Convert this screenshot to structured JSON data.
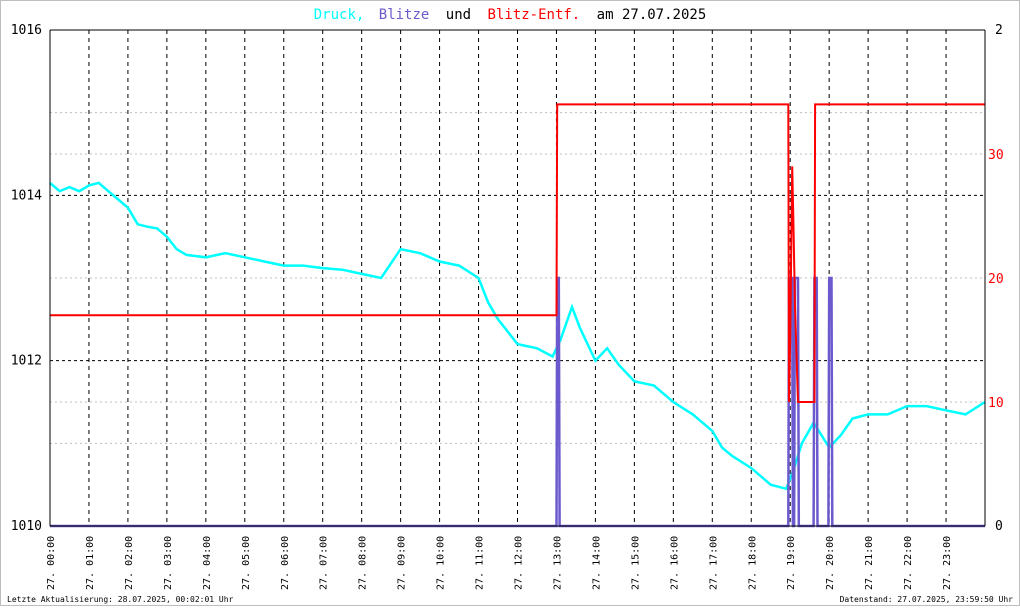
{
  "title": {
    "part1": "Druck,",
    "part2": "Blitze",
    "part3": "und",
    "part4": "Blitz-Entf.",
    "part5": "am 27.07.2025"
  },
  "colors": {
    "druck": "#00ffff",
    "blitze": "#6a5acd",
    "blitz_entf": "#ff0000",
    "text": "#000000",
    "left_axis": "#000000",
    "right_axis": "#ff0000",
    "grid": "#000000",
    "grid_light": "#bfbfbf"
  },
  "footer": {
    "left": "Letzte Aktualisierung: 28.07.2025, 00:02:01 Uhr",
    "right": "Datenstand: 27.07.2025, 23:59:50 Uhr"
  },
  "chart_data": {
    "type": "line",
    "x_unit": "hours",
    "xlim": [
      0,
      24
    ],
    "x_ticks": [
      {
        "x": 0,
        "label": "27. 00:00"
      },
      {
        "x": 1,
        "label": "27. 01:00"
      },
      {
        "x": 2,
        "label": "27. 02:00"
      },
      {
        "x": 3,
        "label": "27. 03:00"
      },
      {
        "x": 4,
        "label": "27. 04:00"
      },
      {
        "x": 5,
        "label": "27. 05:00"
      },
      {
        "x": 6,
        "label": "27. 06:00"
      },
      {
        "x": 7,
        "label": "27. 07:00"
      },
      {
        "x": 8,
        "label": "27. 08:00"
      },
      {
        "x": 9,
        "label": "27. 09:00"
      },
      {
        "x": 10,
        "label": "27. 10:00"
      },
      {
        "x": 11,
        "label": "27. 11:00"
      },
      {
        "x": 12,
        "label": "27. 12:00"
      },
      {
        "x": 13,
        "label": "27. 13:00"
      },
      {
        "x": 14,
        "label": "27. 14:00"
      },
      {
        "x": 15,
        "label": "27. 15:00"
      },
      {
        "x": 16,
        "label": "27. 16:00"
      },
      {
        "x": 17,
        "label": "27. 17:00"
      },
      {
        "x": 18,
        "label": "27. 18:00"
      },
      {
        "x": 19,
        "label": "27. 19:00"
      },
      {
        "x": 20,
        "label": "27. 20:00"
      },
      {
        "x": 21,
        "label": "27. 21:00"
      },
      {
        "x": 22,
        "label": "27. 22:00"
      },
      {
        "x": 23,
        "label": "27. 23:00"
      }
    ],
    "y_left": {
      "min": 1010,
      "max": 1016,
      "ticks": [
        1010,
        1012,
        1014,
        1016
      ],
      "gridlines": [
        1010,
        1011,
        1012,
        1013,
        1014,
        1015,
        1016
      ]
    },
    "y_right_count": {
      "min": 0,
      "max": 2,
      "ticks": [
        0,
        2
      ]
    },
    "y_right_distance": {
      "min": 0,
      "max": 40,
      "ticks": [
        0,
        10,
        20,
        30
      ]
    },
    "series": [
      {
        "name": "Druck",
        "axis": "left",
        "points": [
          [
            0.0,
            1014.15
          ],
          [
            0.25,
            1014.05
          ],
          [
            0.5,
            1014.1
          ],
          [
            0.75,
            1014.05
          ],
          [
            1.0,
            1014.12
          ],
          [
            1.25,
            1014.15
          ],
          [
            1.5,
            1014.05
          ],
          [
            1.75,
            1013.95
          ],
          [
            2.0,
            1013.85
          ],
          [
            2.25,
            1013.65
          ],
          [
            2.5,
            1013.62
          ],
          [
            2.75,
            1013.6
          ],
          [
            3.0,
            1013.5
          ],
          [
            3.25,
            1013.35
          ],
          [
            3.5,
            1013.28
          ],
          [
            4.0,
            1013.25
          ],
          [
            4.5,
            1013.3
          ],
          [
            5.0,
            1013.25
          ],
          [
            5.5,
            1013.2
          ],
          [
            6.0,
            1013.15
          ],
          [
            6.5,
            1013.15
          ],
          [
            7.0,
            1013.12
          ],
          [
            7.5,
            1013.1
          ],
          [
            8.0,
            1013.05
          ],
          [
            8.5,
            1013.0
          ],
          [
            9.0,
            1013.35
          ],
          [
            9.5,
            1013.3
          ],
          [
            10.0,
            1013.2
          ],
          [
            10.5,
            1013.15
          ],
          [
            11.0,
            1013.0
          ],
          [
            11.25,
            1012.7
          ],
          [
            11.5,
            1012.5
          ],
          [
            11.75,
            1012.35
          ],
          [
            12.0,
            1012.2
          ],
          [
            12.5,
            1012.15
          ],
          [
            12.9,
            1012.05
          ],
          [
            13.1,
            1012.25
          ],
          [
            13.4,
            1012.65
          ],
          [
            13.6,
            1012.4
          ],
          [
            14.0,
            1012.0
          ],
          [
            14.3,
            1012.15
          ],
          [
            14.6,
            1011.95
          ],
          [
            15.0,
            1011.75
          ],
          [
            15.5,
            1011.7
          ],
          [
            16.0,
            1011.5
          ],
          [
            16.5,
            1011.35
          ],
          [
            17.0,
            1011.15
          ],
          [
            17.25,
            1010.95
          ],
          [
            17.5,
            1010.85
          ],
          [
            18.0,
            1010.7
          ],
          [
            18.5,
            1010.5
          ],
          [
            18.9,
            1010.45
          ],
          [
            19.1,
            1010.7
          ],
          [
            19.3,
            1011.0
          ],
          [
            19.6,
            1011.25
          ],
          [
            19.8,
            1011.1
          ],
          [
            20.0,
            1010.95
          ],
          [
            20.3,
            1011.1
          ],
          [
            20.6,
            1011.3
          ],
          [
            21.0,
            1011.35
          ],
          [
            21.5,
            1011.35
          ],
          [
            22.0,
            1011.45
          ],
          [
            22.5,
            1011.45
          ],
          [
            23.0,
            1011.4
          ],
          [
            23.5,
            1011.35
          ],
          [
            24.0,
            1011.5
          ]
        ]
      },
      {
        "name": "Blitze",
        "axis": "right_count",
        "points": [
          [
            0.0,
            0
          ],
          [
            13.0,
            0
          ],
          [
            13.02,
            1
          ],
          [
            13.06,
            1
          ],
          [
            13.08,
            0
          ],
          [
            18.95,
            0
          ],
          [
            18.97,
            1
          ],
          [
            19.05,
            1
          ],
          [
            19.07,
            0
          ],
          [
            19.1,
            0
          ],
          [
            19.12,
            1
          ],
          [
            19.2,
            1
          ],
          [
            19.22,
            0
          ],
          [
            19.6,
            0
          ],
          [
            19.62,
            1
          ],
          [
            19.68,
            1
          ],
          [
            19.7,
            0
          ],
          [
            19.98,
            0
          ],
          [
            20.0,
            1
          ],
          [
            20.06,
            1
          ],
          [
            20.08,
            0
          ],
          [
            24.0,
            0
          ]
        ]
      },
      {
        "name": "Blitz-Entf.",
        "axis": "right_distance",
        "points": [
          [
            0.0,
            17
          ],
          [
            13.0,
            17
          ],
          [
            13.02,
            34
          ],
          [
            18.95,
            34
          ],
          [
            18.97,
            10
          ],
          [
            19.0,
            15
          ],
          [
            19.05,
            29
          ],
          [
            19.08,
            25
          ],
          [
            19.12,
            18
          ],
          [
            19.2,
            10
          ],
          [
            19.62,
            10
          ],
          [
            19.64,
            34
          ],
          [
            24.0,
            34
          ]
        ]
      }
    ]
  }
}
